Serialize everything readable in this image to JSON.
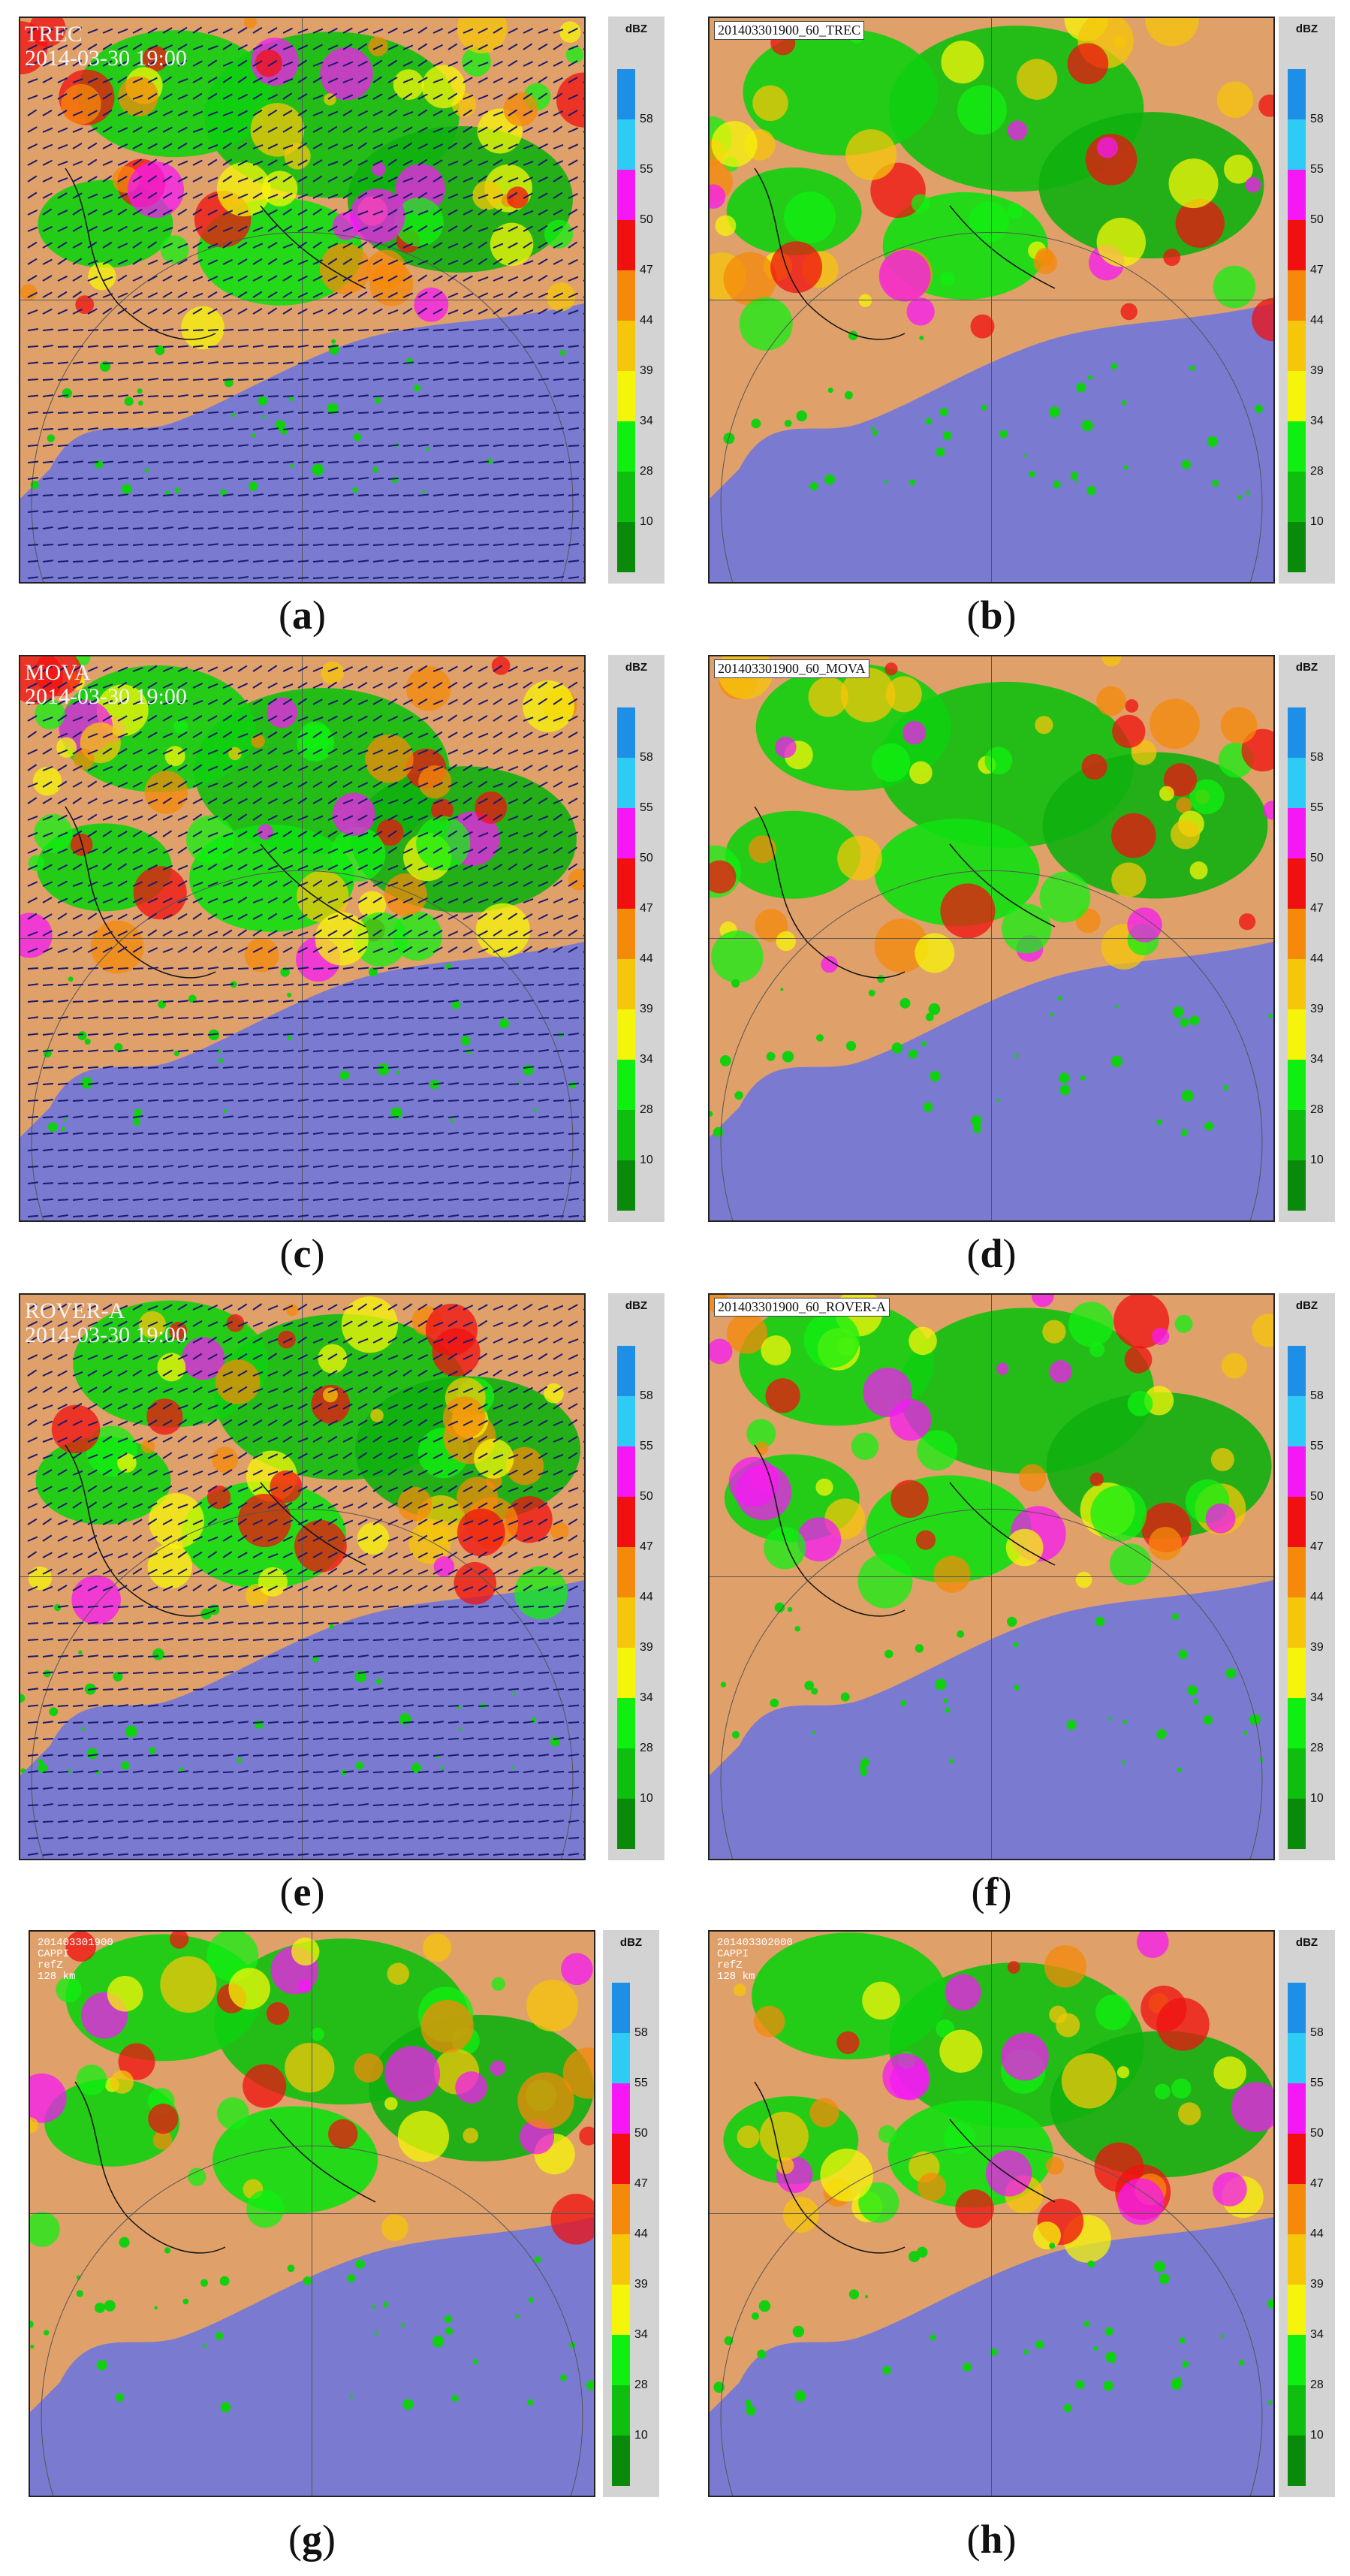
{
  "colorbar": {
    "unit": "dBZ",
    "ticks": [
      "58",
      "55",
      "50",
      "47",
      "44",
      "39",
      "34",
      "28",
      "10"
    ],
    "colors": [
      "#1e8fe6",
      "#2ecbf5",
      "#f518f5",
      "#f01010",
      "#f58a0a",
      "#f5c60a",
      "#f5f50a",
      "#10f010",
      "#0fbf0f",
      "#0a8a0a"
    ]
  },
  "palette": {
    "sea": "#7a7ad0",
    "land": "#e0a06a",
    "arrow": "#1a1a6e"
  },
  "panels": [
    {
      "id": "a",
      "title": "TREC",
      "time": "2014-03-30 19:00",
      "caption": "a"
    },
    {
      "id": "b",
      "filename": "201403301900_60_TREC",
      "caption": "b"
    },
    {
      "id": "c",
      "title": "MOVA",
      "time": "2014-03-30 19:00",
      "caption": "c"
    },
    {
      "id": "d",
      "filename": "201403301900_60_MOVA",
      "caption": "d"
    },
    {
      "id": "e",
      "title": "ROVER-A",
      "time": "2014-03-30 19:00",
      "caption": "e"
    },
    {
      "id": "f",
      "filename": "201403301900_60_ROVER-A",
      "caption": "f"
    },
    {
      "id": "g",
      "capp": [
        "201403301900",
        "CAPPI",
        "refZ",
        "128 km"
      ],
      "caption": "g"
    },
    {
      "id": "h",
      "capp": [
        "201403302000",
        "CAPPI",
        "refZ",
        "128 km"
      ],
      "caption": "h"
    }
  ]
}
